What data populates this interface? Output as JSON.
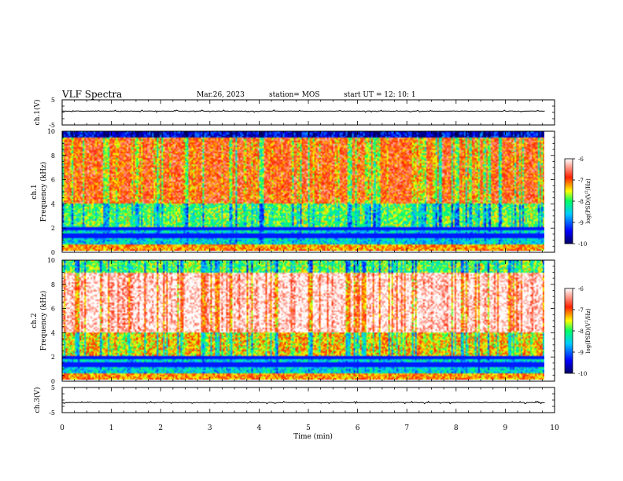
{
  "header": {
    "title": "VLF Spectra",
    "date": "Mar.26, 2023",
    "station": "station= MOS",
    "start": "start  UT =   12: 10: 1"
  },
  "chart_data": [
    {
      "type": "line",
      "panel": "ch1-waveform",
      "ylabel": "ch.1(V)",
      "ylim": [
        -5,
        5
      ],
      "yticks": [
        "5",
        "-5"
      ],
      "x_range_min": [
        0,
        9.8
      ],
      "level": 0.5
    },
    {
      "type": "heatmap",
      "panel": "ch1-spectrogram",
      "ylabel": "ch.1 Frequency (kHz)",
      "ylim": [
        0,
        10
      ],
      "yticks": [
        "0",
        "2",
        "4",
        "6",
        "8",
        "10"
      ],
      "x_range_min": [
        0,
        9.8
      ],
      "colorbar": {
        "label": "log(PSD)(V²/Hz)",
        "ticks": [
          "-6",
          "-7",
          "-8",
          "-9",
          "-10"
        ],
        "range": [
          -10,
          -6
        ]
      },
      "description_levels": {
        "band_0_2_khz": -8.5,
        "band_2_4_khz": -8.0,
        "band_4_9_5_khz": -7.0,
        "top_9_5_10_khz": -9.5
      }
    },
    {
      "type": "heatmap",
      "panel": "ch2-spectrogram",
      "ylabel": "ch.2 Frequency (kHz)",
      "ylim": [
        0,
        10
      ],
      "yticks": [
        "0",
        "2",
        "4",
        "6",
        "8",
        "10"
      ],
      "x_range_min": [
        0,
        9.8
      ],
      "colorbar": {
        "label": "log(PSD)(V²/Hz)",
        "ticks": [
          "-6",
          "-7",
          "-8",
          "-9",
          "-10"
        ],
        "range": [
          -10,
          -6
        ]
      },
      "description_levels": {
        "band_0_2_khz": -8.5,
        "band_2_4_khz": -7.5,
        "band_4_9_khz": -6.2,
        "top_9_10_khz": -8.0
      }
    },
    {
      "type": "line",
      "panel": "ch3-waveform",
      "ylabel": "ch.3(V)",
      "ylim": [
        -5,
        5
      ],
      "yticks": [
        "5",
        "-5"
      ],
      "x_range_min": [
        0,
        9.8
      ],
      "level": -1.0
    }
  ],
  "xaxis": {
    "label": "Time  (min)",
    "ticks": [
      "0",
      "1",
      "2",
      "3",
      "4",
      "5",
      "6",
      "7",
      "8",
      "9",
      "10"
    ],
    "xlim": [
      0,
      10
    ]
  },
  "colors": {
    "cb_stops": [
      "#000066",
      "#0000ff",
      "#00ccff",
      "#00ff66",
      "#ffff00",
      "#ff2200",
      "#ffffff"
    ]
  }
}
